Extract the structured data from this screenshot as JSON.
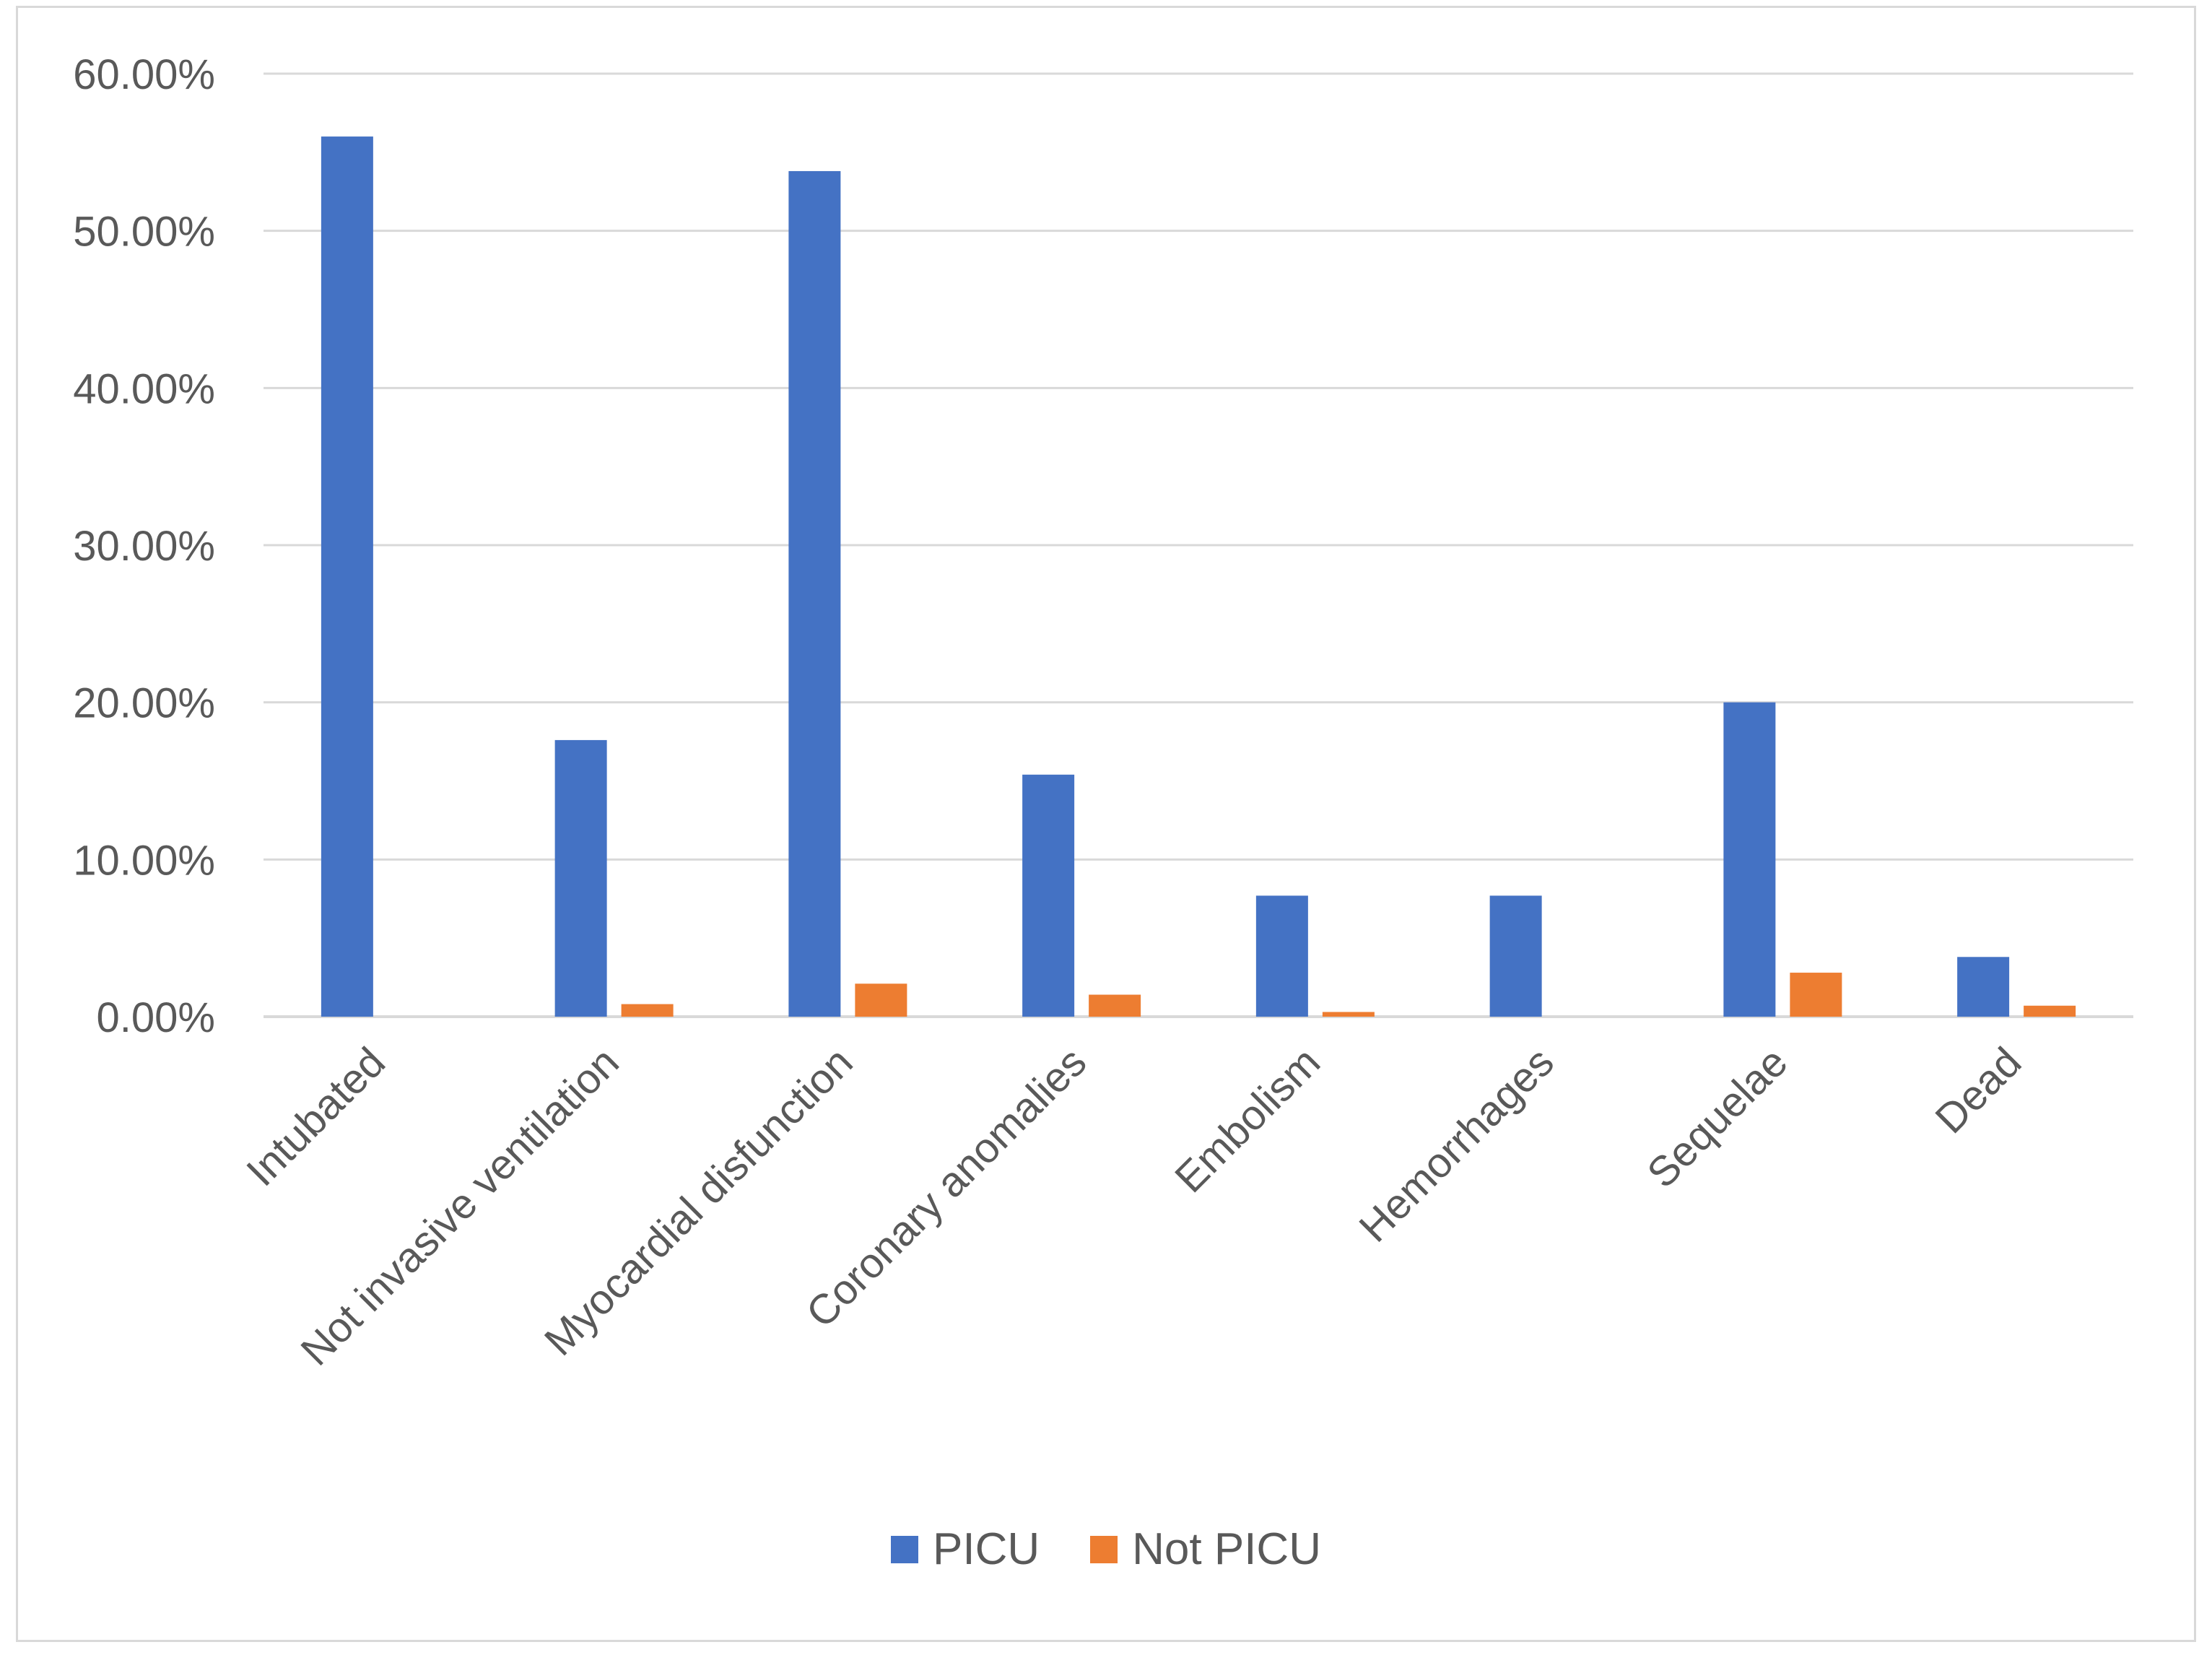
{
  "chart_data": {
    "type": "bar",
    "categories": [
      "Intubated",
      "Not invasive ventilation",
      "Myocardial disfunction",
      "Coronary anomalies",
      "Embolism",
      "Hemorrhages",
      "Sequelae",
      "Dead"
    ],
    "series": [
      {
        "name": "PICU",
        "color": "#4472C4",
        "values": [
          56.0,
          17.6,
          53.8,
          15.4,
          7.7,
          7.7,
          20.0,
          3.8
        ]
      },
      {
        "name": "Not PICU",
        "color": "#ED7D31",
        "values": [
          0.0,
          0.8,
          2.1,
          1.4,
          0.3,
          0.0,
          2.8,
          0.7
        ]
      }
    ],
    "yticks": [
      "0.00%",
      "10.00%",
      "20.00%",
      "30.00%",
      "40.00%",
      "50.00%",
      "60.00%"
    ],
    "ylim": [
      0,
      60
    ],
    "title": "",
    "xlabel": "",
    "ylabel": "",
    "grid": true,
    "legend_position": "bottom"
  }
}
